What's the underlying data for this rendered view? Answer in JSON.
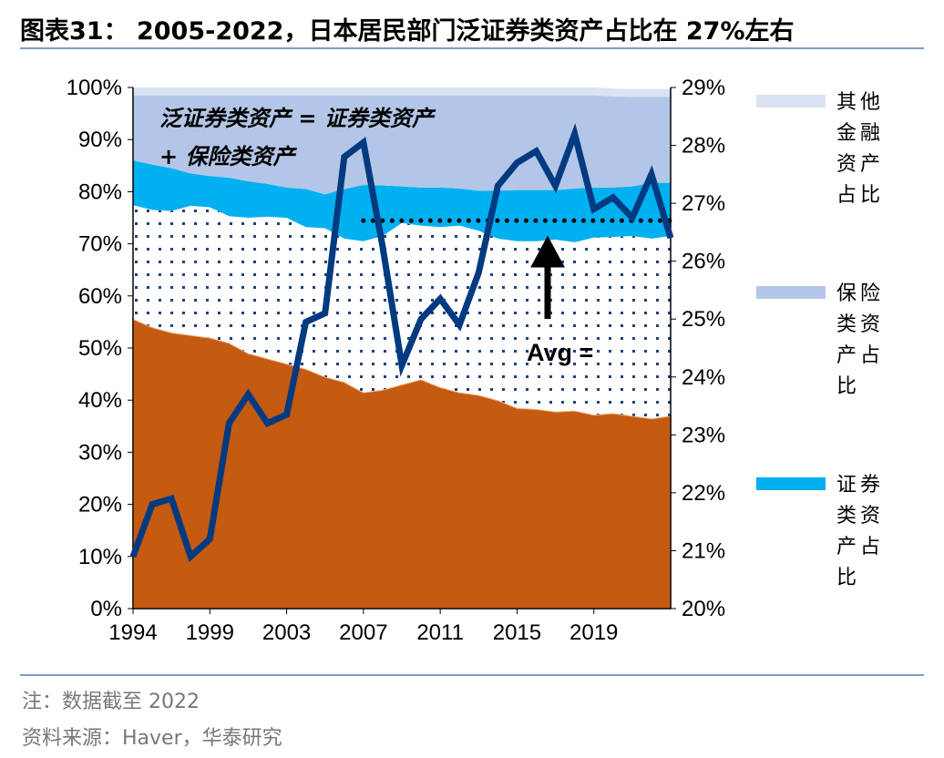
{
  "header": {
    "title": "图表31： 2005-2022，日本居民部门泛证券类资产占比在 27%左右"
  },
  "footer": {
    "note": "注：数据截至 2022",
    "source": "资料来源：Haver，华泰研究"
  },
  "chart_data": {
    "type": "area",
    "title": "",
    "x": [
      1994,
      1995,
      1996,
      1997,
      1998,
      1999,
      2000,
      2001,
      2002,
      2003,
      2004,
      2005,
      2006,
      2007,
      2008,
      2009,
      2010,
      2011,
      2012,
      2013,
      2014,
      2015,
      2016,
      2017,
      2018,
      2019,
      2020,
      2021,
      2022
    ],
    "xticks": [
      "1994",
      "1999",
      "2003",
      "2007",
      "2011",
      "2015",
      "2019"
    ],
    "yleft": {
      "ylim": [
        0,
        100
      ],
      "ticks": [
        "0%",
        "10%",
        "20%",
        "30%",
        "40%",
        "50%",
        "60%",
        "70%",
        "80%",
        "90%",
        "100%"
      ]
    },
    "yright": {
      "ylim": [
        20,
        29
      ],
      "ticks": [
        "20%",
        "21%",
        "22%",
        "23%",
        "24%",
        "25%",
        "26%",
        "27%",
        "28%",
        "29%"
      ]
    },
    "stacked_series": [
      {
        "name": "",
        "color": "#c55a11",
        "values": [
          55.6,
          54,
          53,
          52.5,
          52,
          51,
          49,
          48,
          47,
          46,
          44.5,
          43.5,
          41.5,
          42,
          43,
          44,
          42.5,
          41.5,
          41,
          40,
          38.5,
          38.3,
          37.8,
          38,
          37.2,
          37.5,
          37,
          36.5,
          37
        ]
      },
      {
        "name": "",
        "color": "#ffffff",
        "pattern": "dots",
        "values": [
          21.8,
          22.5,
          23.3,
          24.8,
          25,
          24.3,
          26,
          27.2,
          28,
          27.2,
          28.5,
          27.5,
          29,
          29.5,
          31,
          29.5,
          30.7,
          32,
          31.5,
          31,
          32,
          32.2,
          33,
          32.3,
          34,
          33.8,
          34.5,
          34.5,
          34.5
        ]
      },
      {
        "name": "证券类资产占比",
        "color": "#00b0f0",
        "values": [
          8.6,
          8.7,
          8.2,
          6.2,
          6,
          7.4,
          7,
          6.3,
          5.8,
          7.3,
          6.5,
          9.5,
          10.8,
          9.7,
          7,
          7.3,
          7.6,
          7.1,
          7.7,
          9.2,
          9.8,
          9.8,
          9.5,
          10.3,
          9.6,
          9.5,
          9.5,
          10.7,
          10.2
        ]
      },
      {
        "name": "保险类资产占比",
        "color": "#b4c6e7",
        "values": [
          12.5,
          13.3,
          14,
          15,
          15.5,
          15.8,
          16.5,
          17,
          17.7,
          18,
          19,
          18,
          17.2,
          17.3,
          17.5,
          17.7,
          17.7,
          17.9,
          18.3,
          18.3,
          18.2,
          18.2,
          18.2,
          17.9,
          17.7,
          17.5,
          17.2,
          16.5,
          16.5
        ]
      },
      {
        "name": "其他金融资产占比",
        "color": "#dae3f3",
        "values": [
          1.5,
          1.5,
          1.5,
          1.5,
          1.5,
          1.5,
          1.5,
          1.5,
          1.5,
          1.5,
          1.5,
          1.5,
          1.5,
          1.5,
          1.5,
          1.5,
          1.5,
          1.5,
          1.5,
          1.5,
          1.5,
          1.5,
          1.5,
          1.5,
          1.5,
          1.5,
          1.5,
          1.5,
          1.5
        ]
      }
    ],
    "line_series": {
      "axis": "right",
      "color": "#003a80",
      "values": [
        20.9,
        21.8,
        21.9,
        20.9,
        21.2,
        23.2,
        23.7,
        23.2,
        23.35,
        24.95,
        25.1,
        27.8,
        28.05,
        26.25,
        24.2,
        25.0,
        25.35,
        24.9,
        25.8,
        27.3,
        27.7,
        27.9,
        27.3,
        28.2,
        26.9,
        27.1,
        26.75,
        27.5,
        26.4
      ]
    },
    "average": {
      "value": 26.7,
      "from": 2006,
      "to": 2022,
      "label": "Avg ="
    },
    "annotation": {
      "line1": "泛证券类资产 = 证券类资产",
      "line2": "+ 保险类资产"
    },
    "legend": "right"
  }
}
